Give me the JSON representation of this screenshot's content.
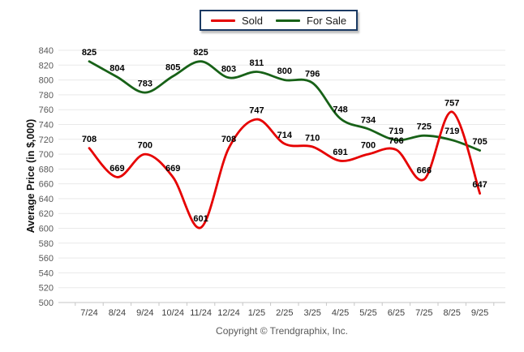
{
  "legend": {
    "items": [
      {
        "label": "Sold",
        "color": "#e60000"
      },
      {
        "label": "For Sale",
        "color": "#176117"
      }
    ]
  },
  "chart_data": {
    "type": "line",
    "title": "",
    "xlabel": "",
    "ylabel": "Average Price (in $,000)",
    "categories": [
      "7/24",
      "8/24",
      "9/24",
      "10/24",
      "11/24",
      "12/24",
      "1/25",
      "2/25",
      "3/25",
      "4/25",
      "5/25",
      "6/25",
      "7/25",
      "8/25",
      "9/25"
    ],
    "series": [
      {
        "name": "Sold",
        "color": "#e60000",
        "values": [
          708,
          669,
          700,
          669,
          601,
          708,
          747,
          714,
          710,
          691,
          700,
          706,
          666,
          757,
          647
        ]
      },
      {
        "name": "For Sale",
        "color": "#176117",
        "values": [
          825,
          804,
          783,
          805,
          825,
          803,
          811,
          800,
          796,
          748,
          734,
          719,
          725,
          719,
          705
        ]
      }
    ],
    "ylim": [
      500,
      840
    ],
    "ytick_step": 20,
    "grid": "horizontal",
    "legend_position": "top-center",
    "line_smoothing": true,
    "data_labels": true
  },
  "footer": {
    "copyright": "Copyright © Trendgraphix, Inc."
  },
  "colors": {
    "background": "#ffffff",
    "grid": "#e9e9e9",
    "axis": "#c6c6c6",
    "y_tick_label": "#595959",
    "x_tick_label": "#3f3f3f",
    "data_label": "#000000",
    "legend_border": "#1b3a63"
  }
}
